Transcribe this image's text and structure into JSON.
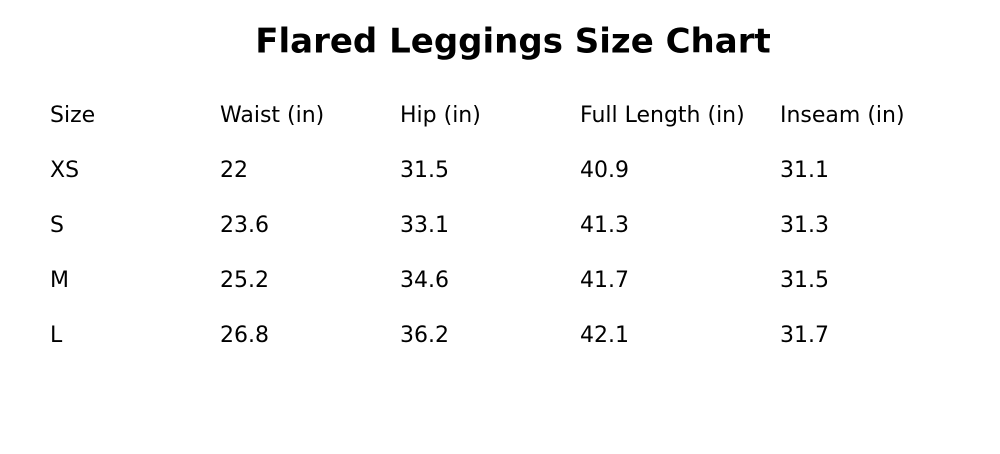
{
  "title": "Flared Leggings Size Chart",
  "table": {
    "header": [
      "Size",
      "Waist (in)",
      "Hip (in)",
      "Full Length (in)",
      "Inseam (in)"
    ],
    "rows": [
      [
        "XS",
        "22",
        "31.5",
        "40.9",
        "31.1"
      ],
      [
        "S",
        "23.6",
        "33.1",
        "41.3",
        "31.3"
      ],
      [
        "M",
        "25.2",
        "34.6",
        "41.7",
        "31.5"
      ],
      [
        "L",
        "26.8",
        "36.2",
        "42.1",
        "31.7"
      ]
    ]
  }
}
